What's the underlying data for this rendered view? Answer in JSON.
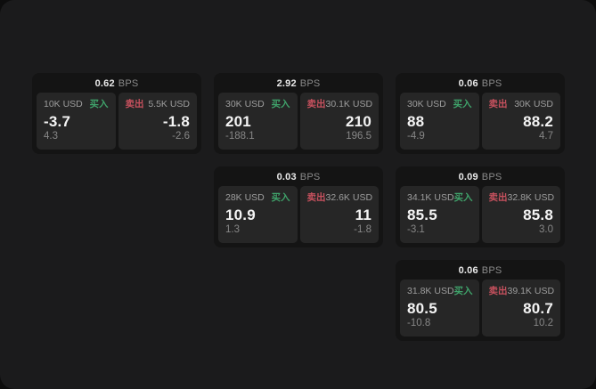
{
  "app": {
    "theme": "dark",
    "backdrop_color": "#0d0d0d",
    "panel_color": "#1b1b1c",
    "card_color": "#141414",
    "tile_color": "#262626",
    "buy_color": "#3fa26a",
    "sell_color": "#c7515e"
  },
  "labels": {
    "buy": "买入",
    "sell": "卖出",
    "bps_unit": "BPS"
  },
  "cards": [
    {
      "row": 1,
      "col": 1,
      "bps": "0.62",
      "buy": {
        "notional": "10K USD",
        "price": "-3.7",
        "sub": "4.3"
      },
      "sell": {
        "notional": "5.5K USD",
        "price": "-1.8",
        "sub": "-2.6"
      }
    },
    {
      "row": 1,
      "col": 2,
      "bps": "2.92",
      "buy": {
        "notional": "30K USD",
        "price": "201",
        "sub": "-188.1"
      },
      "sell": {
        "notional": "30.1K USD",
        "price": "210",
        "sub": "196.5"
      }
    },
    {
      "row": 1,
      "col": 3,
      "bps": "0.06",
      "buy": {
        "notional": "30K USD",
        "price": "88",
        "sub": "-4.9"
      },
      "sell": {
        "notional": "30K USD",
        "price": "88.2",
        "sub": "4.7"
      }
    },
    {
      "row": 2,
      "col": 2,
      "bps": "0.03",
      "buy": {
        "notional": "28K USD",
        "price": "10.9",
        "sub": "1.3"
      },
      "sell": {
        "notional": "32.6K USD",
        "price": "11",
        "sub": "-1.8"
      }
    },
    {
      "row": 2,
      "col": 3,
      "bps": "0.09",
      "buy": {
        "notional": "34.1K USD",
        "price": "85.5",
        "sub": "-3.1"
      },
      "sell": {
        "notional": "32.8K USD",
        "price": "85.8",
        "sub": "3.0"
      }
    },
    {
      "row": 3,
      "col": 3,
      "bps": "0.06",
      "buy": {
        "notional": "31.8K USD",
        "price": "80.5",
        "sub": "-10.8"
      },
      "sell": {
        "notional": "39.1K USD",
        "price": "80.7",
        "sub": "10.2"
      }
    }
  ]
}
